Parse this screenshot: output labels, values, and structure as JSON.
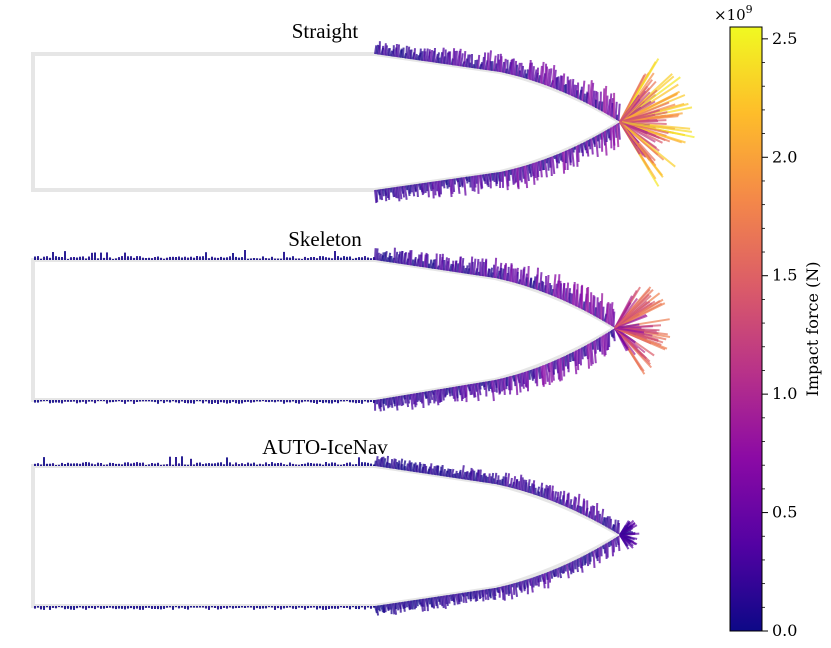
{
  "chart_data": {
    "type": "vector-field",
    "description_series": "Impact force vectors along ship hull outline for three navigation strategies",
    "panels": [
      {
        "title": "Straight",
        "max_force_relative_bow": 1.0,
        "hull_side_force_level": 0.22,
        "stern_force_level": 0.0
      },
      {
        "title": "Skeleton",
        "max_force_relative_bow": 0.7,
        "hull_side_force_level": 0.22,
        "stern_force_level": 0.03
      },
      {
        "title": "AUTO-IceNav",
        "max_force_relative_bow": 0.18,
        "hull_side_force_level": 0.12,
        "stern_force_level": 0.03
      }
    ],
    "colorbar": {
      "label": "Impact force (N)",
      "multiplier": "×10",
      "multiplier_exp": "9",
      "min": 0.0,
      "max": 2.55,
      "ticks": [
        0.0,
        0.5,
        1.0,
        1.5,
        2.0,
        2.5
      ],
      "tick_labels": [
        "0.0",
        "0.5",
        "1.0",
        "1.5",
        "2.0",
        "2.5"
      ],
      "colormap": "plasma"
    },
    "colors": {
      "hull_outline": "#e6e6e6",
      "cmap_stops": [
        "#0d0887",
        "#5302a3",
        "#8b0aa5",
        "#b83289",
        "#db5c68",
        "#f48849",
        "#febd2a",
        "#f0f921"
      ]
    }
  }
}
